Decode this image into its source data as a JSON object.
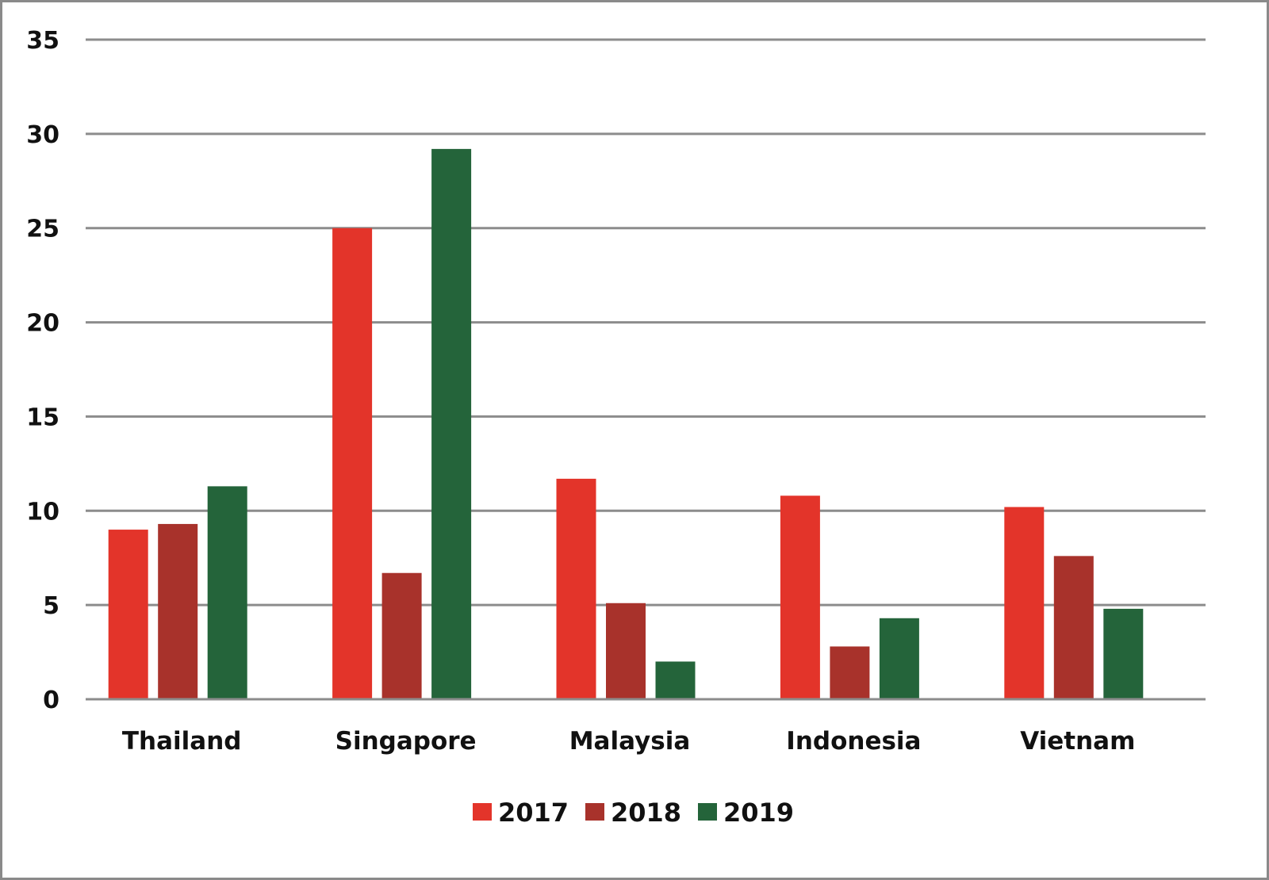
{
  "chart_data": {
    "type": "bar",
    "title": "",
    "xlabel": "",
    "ylabel": "",
    "ylim": [
      0,
      35
    ],
    "yticks": [
      0,
      5,
      10,
      15,
      20,
      25,
      30,
      35
    ],
    "grid": true,
    "legend_position": "bottom-center",
    "categories": [
      "Thailand",
      "Singapore",
      "Malaysia",
      "Indonesia",
      "Vietnam"
    ],
    "series": [
      {
        "name": "2017",
        "color": "#e3342a",
        "values": [
          9.0,
          25.0,
          11.7,
          10.8,
          10.2
        ]
      },
      {
        "name": "2018",
        "color": "#a8322b",
        "values": [
          9.3,
          6.7,
          5.1,
          2.8,
          7.6
        ]
      },
      {
        "name": "2019",
        "color": "#24643a",
        "values": [
          11.3,
          29.2,
          2.0,
          4.3,
          4.8
        ]
      }
    ]
  }
}
